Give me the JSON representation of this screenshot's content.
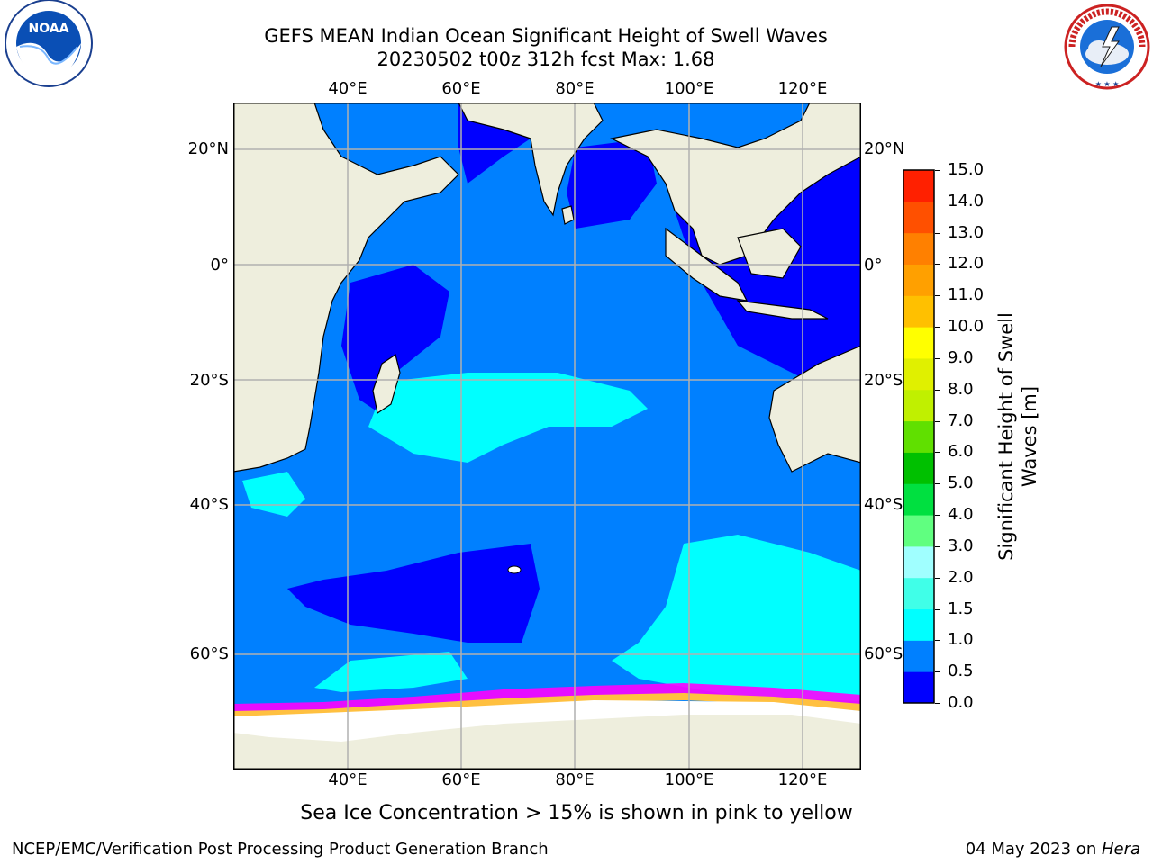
{
  "header": {
    "title_line1": "GEFS MEAN Indian Ocean Significant Height of Swell Waves",
    "title_line2": "20230502 t00z 312h fcst   Max: 1.68"
  },
  "logos": {
    "left": {
      "name": "NOAA",
      "ring_text": "NATIONAL OCEANIC AND ATMOSPHERIC ADMINISTRATION · U.S. DEPARTMENT OF COMMERCE"
    },
    "right": {
      "name": "NATIONAL WEATHER SERVICE"
    }
  },
  "map": {
    "lon_labels": [
      "40°E",
      "60°E",
      "80°E",
      "100°E",
      "120°E"
    ],
    "lat_labels": [
      "20°N",
      "0°",
      "20°S",
      "40°S",
      "60°S"
    ],
    "colors": {
      "land": "#eeeedd",
      "ocean_0_05": "#0000ff",
      "ocean_05_10": "#0080ff",
      "ocean_10_15": "#00ffff",
      "ice_pink": "#ff00ff",
      "ice_yellow": "#ffc040",
      "grid": "#b0b0b0"
    }
  },
  "colorbar": {
    "ticks": [
      "15.0",
      "14.0",
      "13.0",
      "12.0",
      "11.0",
      "10.0",
      "9.0",
      "8.0",
      "7.0",
      "6.0",
      "5.0",
      "4.0",
      "3.0",
      "2.0",
      "1.5",
      "1.0",
      "0.5",
      "0.0"
    ],
    "bins": [
      "#0000ff",
      "#0080ff",
      "#00ffff",
      "#40ffe8",
      "#a0ffff",
      "#60ff80",
      "#00e040",
      "#00c000",
      "#60e000",
      "#c0f000",
      "#e0f000",
      "#ffff00",
      "#ffc000",
      "#ffa000",
      "#ff8000",
      "#ff5000",
      "#ff2000",
      "#ff0000"
    ],
    "label_line1": "Significant Height of Swell",
    "label_line2": "Waves [m]"
  },
  "caption": "Sea Ice Concentration > 15% is shown in pink to yellow",
  "footer": {
    "left": "NCEP/EMC/Verification Post Processing Product Generation Branch",
    "date": "04 May 2023 on ",
    "machine": "Hera"
  }
}
